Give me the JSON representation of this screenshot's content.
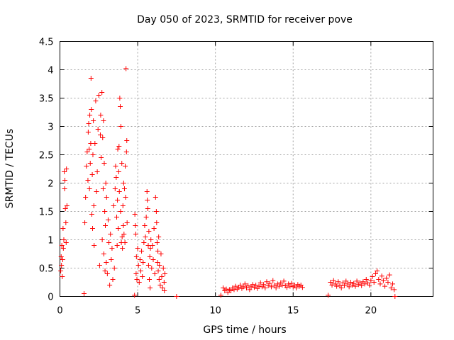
{
  "chart_data": {
    "type": "scatter",
    "title": "Day 050 of 2023, SRMTID for receiver pove",
    "xlabel": "GPS time / hours",
    "ylabel": "SRMTID / TECUs",
    "xlim": [
      0,
      24
    ],
    "ylim": [
      0,
      4.5
    ],
    "xticks": [
      0,
      5,
      10,
      15,
      20
    ],
    "xtick_labels": [
      "0",
      "5",
      "10",
      "15",
      "20"
    ],
    "yticks": [
      0,
      0.5,
      1,
      1.5,
      2,
      2.5,
      3,
      3.5,
      4,
      4.5
    ],
    "ytick_labels": [
      "0",
      "0.5",
      "1",
      "1.5",
      "2",
      "2.5",
      "3",
      "3.5",
      "4",
      "4.5"
    ],
    "grid": true,
    "marker": "+",
    "color": "#ff0000",
    "series": [
      {
        "name": "SRMTID",
        "points": [
          [
            0.05,
            0.45
          ],
          [
            0.08,
            0.7
          ],
          [
            0.1,
            0.55
          ],
          [
            0.12,
            0.9
          ],
          [
            0.15,
            0.35
          ],
          [
            0.18,
            0.65
          ],
          [
            0.2,
            1.2
          ],
          [
            0.22,
            0.85
          ],
          [
            0.25,
            1.0
          ],
          [
            0.28,
            2.2
          ],
          [
            0.3,
            1.9
          ],
          [
            0.32,
            2.05
          ],
          [
            0.35,
            1.55
          ],
          [
            0.38,
            1.3
          ],
          [
            0.4,
            0.95
          ],
          [
            0.42,
            2.25
          ],
          [
            0.45,
            1.6
          ],
          [
            1.55,
            0.05
          ],
          [
            1.6,
            1.3
          ],
          [
            1.65,
            1.75
          ],
          [
            1.7,
            2.3
          ],
          [
            1.75,
            2.55
          ],
          [
            1.8,
            2.05
          ],
          [
            1.82,
            2.9
          ],
          [
            1.85,
            3.05
          ],
          [
            1.88,
            2.6
          ],
          [
            1.9,
            1.9
          ],
          [
            1.92,
            3.2
          ],
          [
            1.95,
            2.35
          ],
          [
            1.98,
            2.7
          ],
          [
            2.0,
            3.85
          ],
          [
            2.02,
            3.3
          ],
          [
            2.05,
            1.45
          ],
          [
            2.08,
            2.15
          ],
          [
            2.1,
            1.2
          ],
          [
            2.12,
            2.5
          ],
          [
            2.15,
            3.1
          ],
          [
            2.18,
            1.6
          ],
          [
            2.2,
            0.9
          ],
          [
            2.25,
            2.7
          ],
          [
            2.3,
            3.45
          ],
          [
            2.35,
            1.85
          ],
          [
            2.4,
            2.2
          ],
          [
            2.45,
            2.95
          ],
          [
            2.5,
            3.55
          ],
          [
            2.55,
            0.55
          ],
          [
            2.6,
            2.85
          ],
          [
            2.62,
            3.2
          ],
          [
            2.65,
            2.45
          ],
          [
            2.7,
            3.6
          ],
          [
            2.72,
            1.0
          ],
          [
            2.75,
            2.8
          ],
          [
            2.78,
            1.9
          ],
          [
            2.8,
            3.1
          ],
          [
            2.82,
            0.75
          ],
          [
            2.85,
            2.35
          ],
          [
            2.88,
            1.5
          ],
          [
            2.9,
            0.45
          ],
          [
            2.92,
            1.25
          ],
          [
            2.95,
            2.0
          ],
          [
            2.98,
            0.6
          ],
          [
            3.0,
            1.75
          ],
          [
            3.05,
            0.4
          ],
          [
            3.1,
            1.35
          ],
          [
            3.15,
            0.95
          ],
          [
            3.2,
            0.2
          ],
          [
            3.25,
            1.1
          ],
          [
            3.3,
            0.65
          ],
          [
            3.35,
            0.85
          ],
          [
            3.4,
            0.3
          ],
          [
            3.45,
            1.6
          ],
          [
            3.5,
            0.5
          ],
          [
            3.55,
            1.9
          ],
          [
            3.58,
            2.3
          ],
          [
            3.62,
            2.1
          ],
          [
            3.65,
            1.4
          ],
          [
            3.68,
            0.9
          ],
          [
            3.7,
            1.7
          ],
          [
            3.72,
            2.6
          ],
          [
            3.75,
            1.2
          ],
          [
            3.78,
            2.2
          ],
          [
            3.8,
            2.65
          ],
          [
            3.82,
            1.85
          ],
          [
            3.85,
            3.5
          ],
          [
            3.88,
            3.35
          ],
          [
            3.9,
            1.5
          ],
          [
            3.92,
            3.0
          ],
          [
            3.95,
            0.95
          ],
          [
            3.98,
            2.35
          ],
          [
            4.0,
            1.05
          ],
          [
            4.02,
            0.85
          ],
          [
            4.05,
            1.6
          ],
          [
            4.08,
            1.25
          ],
          [
            4.1,
            2.0
          ],
          [
            4.12,
            1.1
          ],
          [
            4.15,
            1.9
          ],
          [
            4.18,
            0.95
          ],
          [
            4.2,
            2.3
          ],
          [
            4.22,
            1.75
          ],
          [
            4.25,
            4.02
          ],
          [
            4.28,
            2.55
          ],
          [
            4.3,
            2.75
          ],
          [
            4.32,
            1.3
          ],
          [
            4.8,
            0.02
          ],
          [
            4.82,
            1.45
          ],
          [
            4.85,
            1.25
          ],
          [
            4.88,
            1.1
          ],
          [
            4.9,
            0.4
          ],
          [
            4.92,
            0.7
          ],
          [
            4.95,
            0.3
          ],
          [
            5.0,
            0.85
          ],
          [
            5.05,
            0.55
          ],
          [
            5.1,
            0.25
          ],
          [
            5.15,
            0.65
          ],
          [
            5.2,
            0.45
          ],
          [
            5.25,
            0.8
          ],
          [
            5.3,
            0.35
          ],
          [
            5.35,
            0.6
          ],
          [
            5.4,
            0.95
          ],
          [
            5.45,
            1.25
          ],
          [
            5.5,
            1.05
          ],
          [
            5.55,
            1.4
          ],
          [
            5.6,
            1.85
          ],
          [
            5.62,
            1.7
          ],
          [
            5.65,
            1.55
          ],
          [
            5.68,
            0.9
          ],
          [
            5.7,
            0.55
          ],
          [
            5.72,
            1.15
          ],
          [
            5.75,
            0.3
          ],
          [
            5.78,
            0.7
          ],
          [
            5.8,
            0.15
          ],
          [
            5.82,
            0.85
          ],
          [
            5.85,
            1.0
          ],
          [
            5.9,
            0.5
          ],
          [
            5.95,
            0.9
          ],
          [
            6.0,
            0.65
          ],
          [
            6.05,
            1.2
          ],
          [
            6.1,
            0.4
          ],
          [
            6.15,
            1.75
          ],
          [
            6.2,
            1.5
          ],
          [
            6.22,
            1.3
          ],
          [
            6.25,
            0.95
          ],
          [
            6.28,
            0.6
          ],
          [
            6.3,
            0.8
          ],
          [
            6.32,
            0.45
          ],
          [
            6.35,
            1.05
          ],
          [
            6.38,
            0.3
          ],
          [
            6.4,
            0.55
          ],
          [
            6.45,
            0.2
          ],
          [
            6.5,
            0.75
          ],
          [
            6.55,
            0.35
          ],
          [
            6.6,
            0.15
          ],
          [
            6.65,
            0.5
          ],
          [
            6.7,
            0.25
          ],
          [
            6.72,
            0.1
          ],
          [
            6.75,
            0.4
          ],
          [
            7.5,
            0.0
          ],
          [
            10.35,
            0.02
          ],
          [
            10.5,
            0.15
          ],
          [
            10.6,
            0.1
          ],
          [
            10.7,
            0.13
          ],
          [
            10.8,
            0.07
          ],
          [
            10.9,
            0.12
          ],
          [
            11.0,
            0.1
          ],
          [
            11.1,
            0.15
          ],
          [
            11.2,
            0.12
          ],
          [
            11.3,
            0.18
          ],
          [
            11.4,
            0.13
          ],
          [
            11.5,
            0.16
          ],
          [
            11.6,
            0.2
          ],
          [
            11.7,
            0.14
          ],
          [
            11.8,
            0.17
          ],
          [
            11.9,
            0.22
          ],
          [
            12.0,
            0.15
          ],
          [
            12.1,
            0.19
          ],
          [
            12.2,
            0.12
          ],
          [
            12.3,
            0.17
          ],
          [
            12.4,
            0.21
          ],
          [
            12.5,
            0.16
          ],
          [
            12.6,
            0.2
          ],
          [
            12.7,
            0.14
          ],
          [
            12.8,
            0.18
          ],
          [
            12.9,
            0.24
          ],
          [
            13.0,
            0.17
          ],
          [
            13.1,
            0.21
          ],
          [
            13.2,
            0.15
          ],
          [
            13.3,
            0.26
          ],
          [
            13.4,
            0.19
          ],
          [
            13.5,
            0.23
          ],
          [
            13.6,
            0.17
          ],
          [
            13.7,
            0.28
          ],
          [
            13.8,
            0.2
          ],
          [
            13.9,
            0.15
          ],
          [
            14.0,
            0.22
          ],
          [
            14.1,
            0.18
          ],
          [
            14.2,
            0.24
          ],
          [
            14.3,
            0.2
          ],
          [
            14.4,
            0.27
          ],
          [
            14.5,
            0.19
          ],
          [
            14.6,
            0.16
          ],
          [
            14.7,
            0.22
          ],
          [
            14.8,
            0.18
          ],
          [
            14.9,
            0.23
          ],
          [
            15.0,
            0.17
          ],
          [
            15.1,
            0.2
          ],
          [
            15.2,
            0.15
          ],
          [
            15.3,
            0.21
          ],
          [
            15.4,
            0.18
          ],
          [
            15.5,
            0.2
          ],
          [
            15.6,
            0.16
          ],
          [
            17.25,
            0.02
          ],
          [
            17.4,
            0.25
          ],
          [
            17.5,
            0.2
          ],
          [
            17.6,
            0.28
          ],
          [
            17.7,
            0.22
          ],
          [
            17.8,
            0.18
          ],
          [
            17.9,
            0.26
          ],
          [
            18.0,
            0.2
          ],
          [
            18.1,
            0.15
          ],
          [
            18.2,
            0.24
          ],
          [
            18.3,
            0.19
          ],
          [
            18.4,
            0.27
          ],
          [
            18.5,
            0.22
          ],
          [
            18.6,
            0.17
          ],
          [
            18.7,
            0.25
          ],
          [
            18.8,
            0.2
          ],
          [
            18.9,
            0.23
          ],
          [
            19.0,
            0.18
          ],
          [
            19.1,
            0.27
          ],
          [
            19.2,
            0.21
          ],
          [
            19.3,
            0.24
          ],
          [
            19.4,
            0.19
          ],
          [
            19.5,
            0.26
          ],
          [
            19.6,
            0.22
          ],
          [
            19.7,
            0.3
          ],
          [
            19.8,
            0.24
          ],
          [
            19.9,
            0.2
          ],
          [
            20.0,
            0.28
          ],
          [
            20.1,
            0.35
          ],
          [
            20.2,
            0.25
          ],
          [
            20.3,
            0.4
          ],
          [
            20.4,
            0.45
          ],
          [
            20.5,
            0.3
          ],
          [
            20.6,
            0.22
          ],
          [
            20.7,
            0.36
          ],
          [
            20.8,
            0.28
          ],
          [
            20.9,
            0.18
          ],
          [
            21.0,
            0.32
          ],
          [
            21.1,
            0.25
          ],
          [
            21.2,
            0.38
          ],
          [
            21.3,
            0.15
          ],
          [
            21.4,
            0.22
          ],
          [
            21.5,
            0.12
          ],
          [
            21.55,
            0.0
          ]
        ]
      }
    ]
  }
}
